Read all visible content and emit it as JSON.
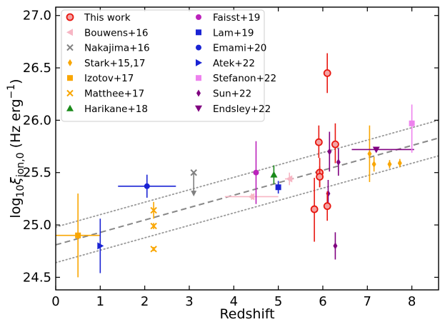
{
  "chart_data": {
    "type": "scatter",
    "xlabel": "Redshift",
    "ylabel_parts": {
      "base": "log",
      "sub": "10",
      "symbol": "ξ",
      "symbol_sub": "ion,0",
      "unit": " (Hz erg",
      "unit_exp": "−1",
      "unit_close": ")"
    },
    "xlim": [
      0,
      8.6
    ],
    "ylim": [
      24.38,
      27.08
    ],
    "xticks": [
      0,
      1,
      2,
      3,
      4,
      5,
      6,
      7,
      8
    ],
    "yticks": [
      24.5,
      25.0,
      25.5,
      26.0,
      26.5,
      27.0
    ],
    "ytick_labels": [
      "24.5",
      "25.0",
      "25.5",
      "26.0",
      "26.5",
      "27.0"
    ],
    "xtick_labels": [
      "0",
      "1",
      "2",
      "3",
      "4",
      "5",
      "6",
      "7",
      "8"
    ],
    "fit_lines": [
      {
        "name": "best-fit",
        "style": "dashed",
        "color": "#888888",
        "points": [
          [
            0,
            24.81
          ],
          [
            8.6,
            25.83
          ]
        ]
      },
      {
        "name": "upper-scatter",
        "style": "dotted",
        "color": "#999999",
        "points": [
          [
            0,
            24.98
          ],
          [
            8.6,
            26.0
          ]
        ]
      },
      {
        "name": "lower-scatter",
        "style": "dotted",
        "color": "#999999",
        "points": [
          [
            0,
            24.64
          ],
          [
            8.6,
            25.66
          ]
        ]
      }
    ],
    "series": [
      {
        "name": "This work",
        "marker": "circle-open",
        "color": "#e8160f",
        "points": [
          {
            "x": 5.81,
            "y": 25.15,
            "yerr": [
              0.31,
              0.3
            ]
          },
          {
            "x": 5.91,
            "y": 25.79,
            "yerr": [
              0.15,
              0.16
            ]
          },
          {
            "x": 5.93,
            "y": 25.5,
            "yerr": [
              0.14,
              0.14
            ]
          },
          {
            "x": 5.93,
            "y": 25.46,
            "yerr": [
              0.1,
              0.1
            ]
          },
          {
            "x": 6.1,
            "y": 26.45,
            "yerr": [
              0.19,
              0.19
            ]
          },
          {
            "x": 6.1,
            "y": 25.18,
            "yerr": [
              0.14,
              0.14
            ]
          },
          {
            "x": 6.28,
            "y": 25.77,
            "yerr": [
              0.18,
              0.2
            ]
          }
        ]
      },
      {
        "name": "Bouwens+16",
        "marker": "triangle-left",
        "color": "#f7b6c4",
        "points": [
          {
            "x": 4.4,
            "y": 25.27,
            "xerr": [
              0.6,
              0.6
            ],
            "yerr": [
              0.03,
              0.03
            ]
          },
          {
            "x": 5.25,
            "y": 25.44,
            "xerr": [
              0.1,
              0.1
            ],
            "yerr": [
              0.06,
              0.06
            ]
          }
        ]
      },
      {
        "name": "Nakajima+16",
        "marker": "x",
        "color": "#808080",
        "points": [
          {
            "x": 3.1,
            "y": 25.5,
            "arrow_to": 25.3
          }
        ]
      },
      {
        "name": "Stark+15,17",
        "marker": "diamond-thin",
        "color": "#f9a602",
        "points": [
          {
            "x": 7.05,
            "y": 25.68,
            "yerr": [
              0.27,
              0.27
            ]
          },
          {
            "x": 7.15,
            "y": 25.58,
            "yerr": [
              0.07,
              0.07
            ]
          },
          {
            "x": 7.5,
            "y": 25.58,
            "yerr": [
              0.04,
              0.04
            ]
          },
          {
            "x": 7.73,
            "y": 25.59,
            "yerr": [
              0.04,
              0.04
            ]
          }
        ]
      },
      {
        "name": "Izotov+17",
        "marker": "square",
        "color": "#f9a602",
        "points": [
          {
            "x": 0.5,
            "y": 24.9,
            "xerr": [
              0.5,
              0.5
            ],
            "yerr": [
              0.4,
              0.4
            ]
          }
        ]
      },
      {
        "name": "Matthee+17",
        "marker": "x",
        "color": "#f9a602",
        "points": [
          {
            "x": 2.2,
            "y": 25.14,
            "yerr": [
              0.08,
              0.08
            ]
          },
          {
            "x": 2.2,
            "y": 24.99,
            "yerr": [
              0.03,
              0.03
            ]
          },
          {
            "x": 2.2,
            "y": 24.77,
            "yerr": [
              0.02,
              0.02
            ]
          }
        ]
      },
      {
        "name": "Harikane+18",
        "marker": "triangle-up",
        "color": "#1a8a1a",
        "points": [
          {
            "x": 4.9,
            "y": 25.48,
            "yerr": [
              0.09,
              0.09
            ]
          }
        ]
      },
      {
        "name": "Faisst+19",
        "marker": "circle",
        "color": "#bb22bb",
        "points": [
          {
            "x": 4.5,
            "y": 25.5,
            "yerr": [
              0.3,
              0.3
            ]
          }
        ]
      },
      {
        "name": "Lam+19",
        "marker": "square",
        "color": "#1a23d4",
        "points": [
          {
            "x": 5.0,
            "y": 25.36,
            "yerr": [
              0.06,
              0.06
            ]
          }
        ]
      },
      {
        "name": "Emami+20",
        "marker": "circle",
        "color": "#1a23d4",
        "points": [
          {
            "x": 2.05,
            "y": 25.37,
            "xerr": [
              0.65,
              0.65
            ],
            "yerr": [
              0.11,
              0.11
            ]
          }
        ]
      },
      {
        "name": "Atek+22",
        "marker": "triangle-right",
        "color": "#1a23d4",
        "points": [
          {
            "x": 1.0,
            "y": 24.8,
            "yerr": [
              0.26,
              0.26
            ]
          }
        ]
      },
      {
        "name": "Stefanon+22",
        "marker": "square",
        "color": "#ee82ee",
        "points": [
          {
            "x": 8.0,
            "y": 25.97,
            "yerr": [
              0.28,
              0.18
            ]
          }
        ]
      },
      {
        "name": "Sun+22",
        "marker": "diamond-thin",
        "color": "#800080",
        "points": [
          {
            "x": 6.12,
            "y": 25.3,
            "yerr": [
              0.13,
              0.13
            ]
          },
          {
            "x": 6.15,
            "y": 25.7,
            "yerr": [
              0.19,
              0.19
            ]
          },
          {
            "x": 6.28,
            "y": 24.8,
            "yerr": [
              0.13,
              0.13
            ]
          },
          {
            "x": 6.35,
            "y": 25.6,
            "yerr": [
              0.13,
              0.13
            ]
          }
        ]
      },
      {
        "name": "Endsley+22",
        "marker": "triangle-down",
        "color": "#800080",
        "points": [
          {
            "x": 7.2,
            "y": 25.72,
            "xerr": [
              0.55,
              0.85
            ],
            "yerr": [
              0.01,
              0.01
            ]
          }
        ]
      }
    ],
    "legend": {
      "placement": "top-left",
      "columns": [
        [
          "This work",
          "Bouwens+16",
          "Nakajima+16",
          "Stark+15,17",
          "Izotov+17",
          "Matthee+17",
          "Harikane+18"
        ],
        [
          "Faisst+19",
          "Lam+19",
          "Emami+20",
          "Atek+22",
          "Stefanon+22",
          "Sun+22",
          "Endsley+22"
        ]
      ]
    }
  }
}
